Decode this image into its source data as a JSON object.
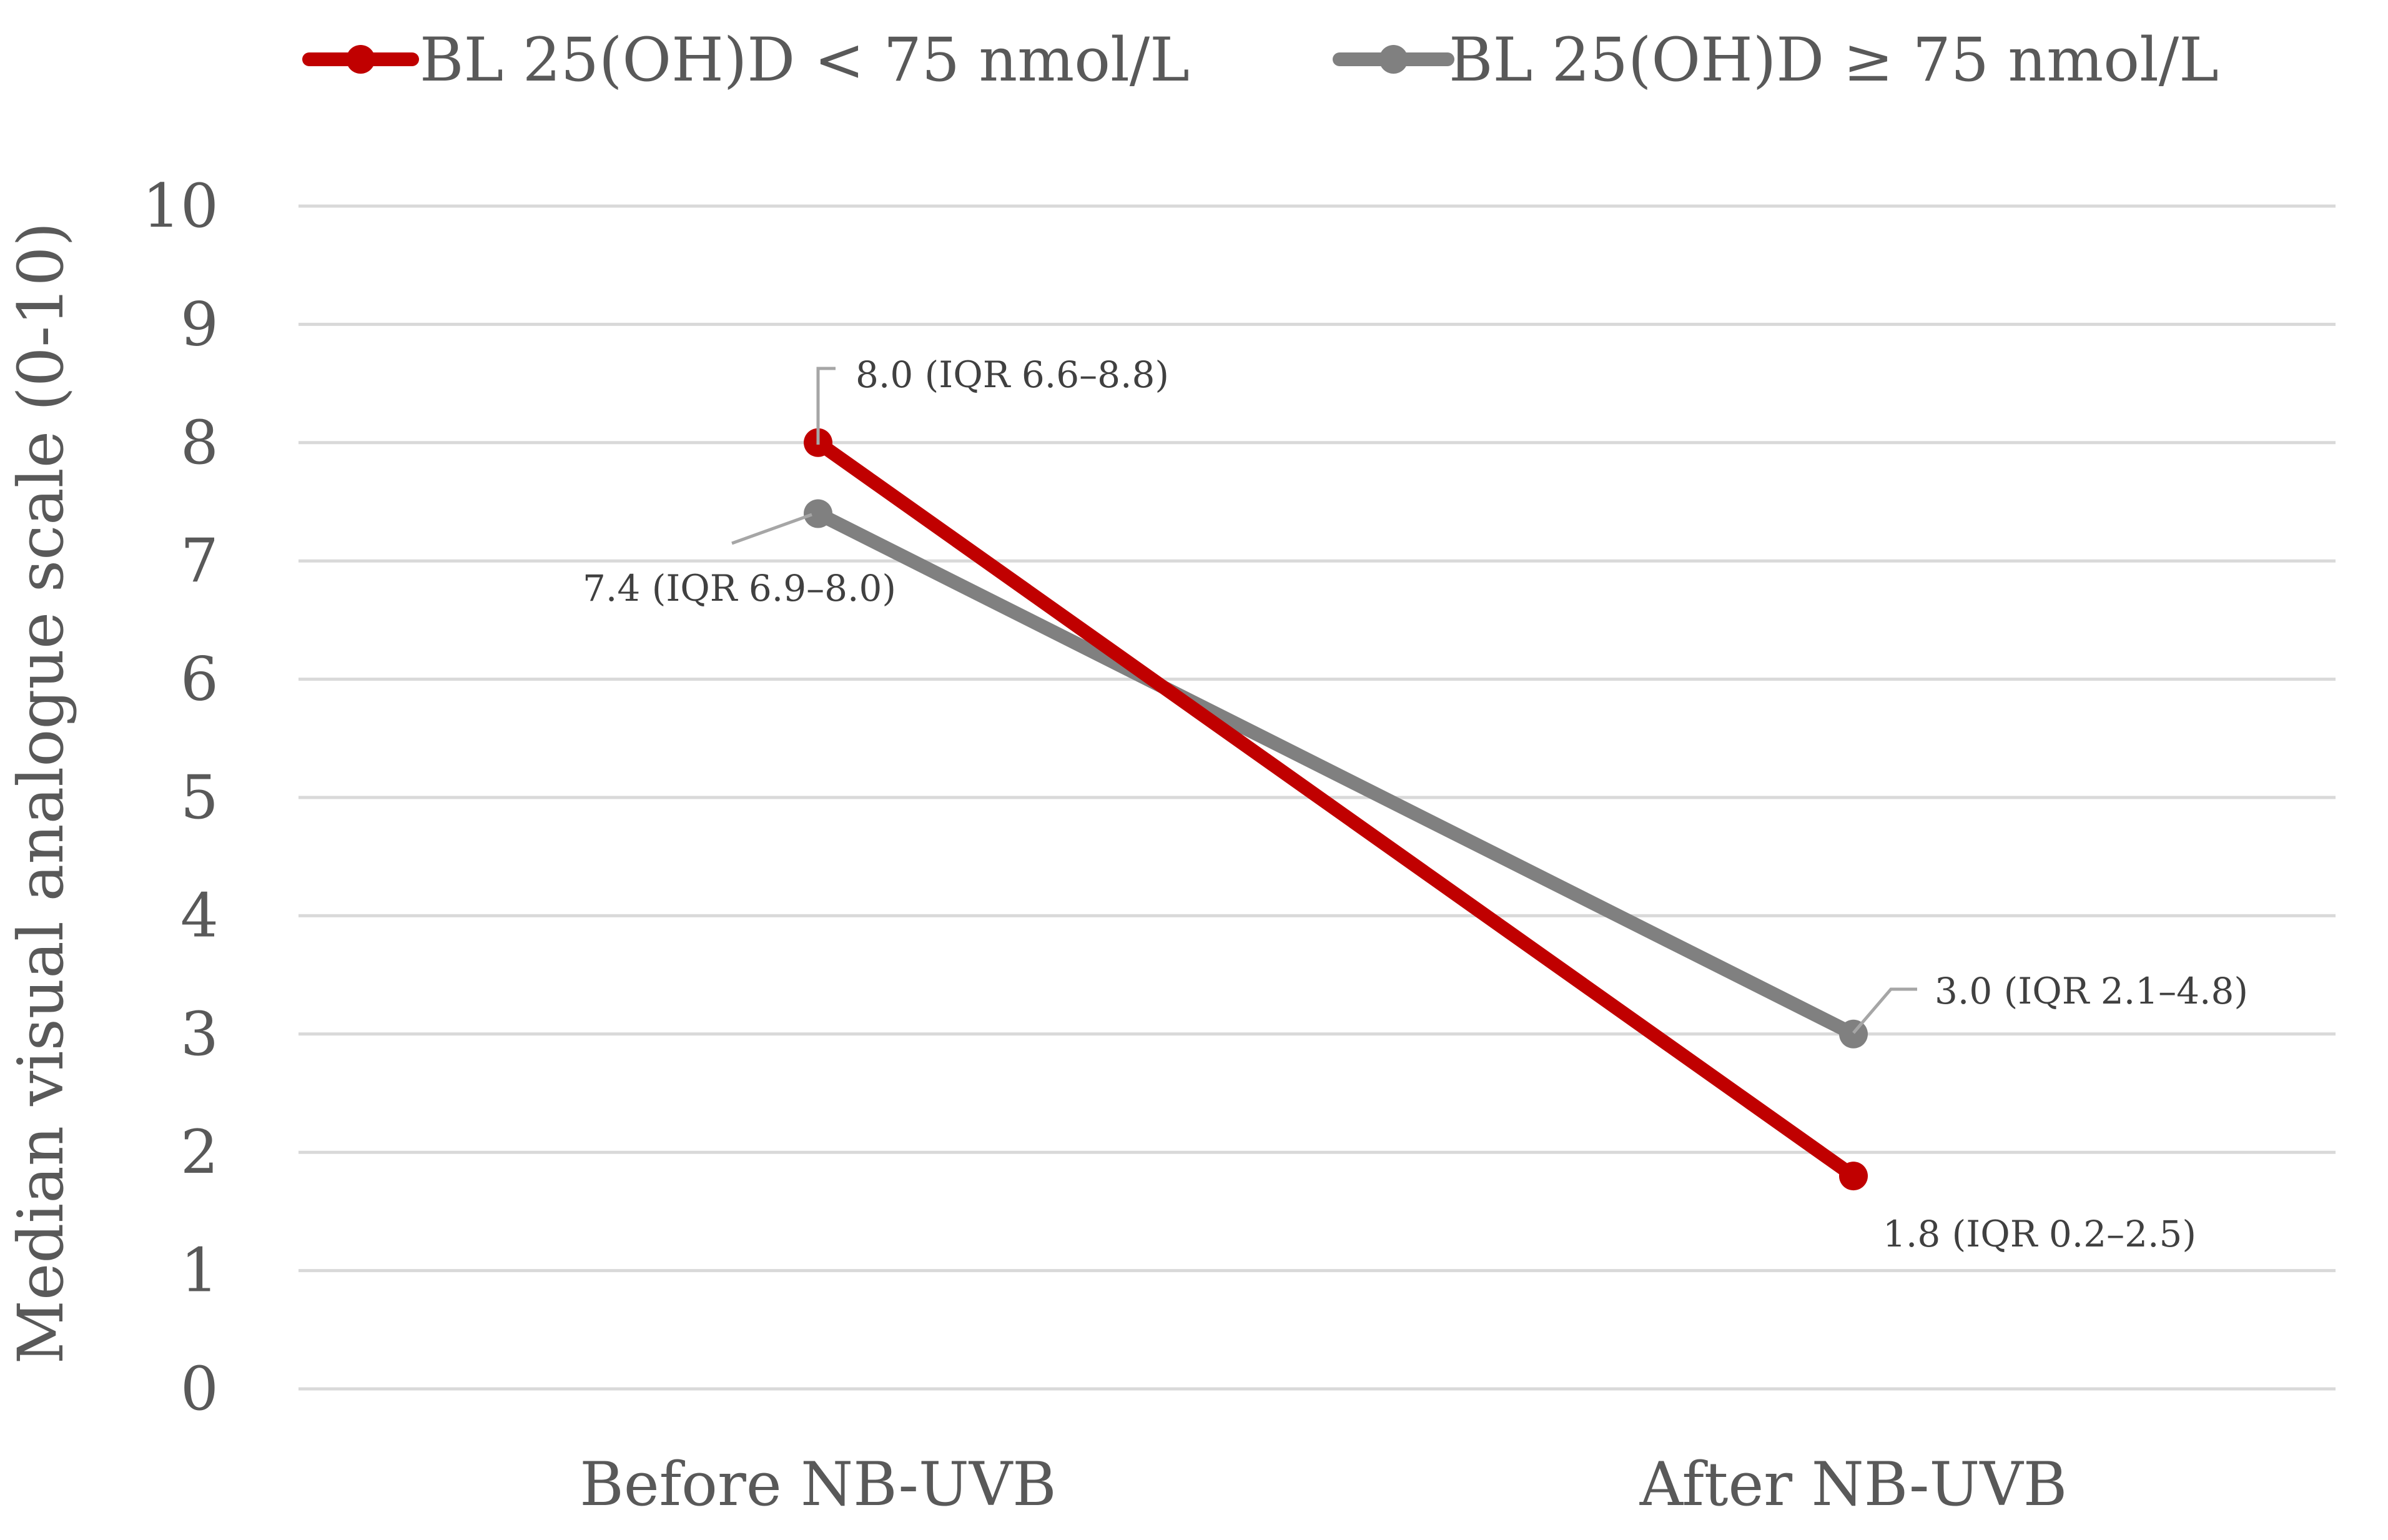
{
  "chart_data": {
    "type": "line",
    "title": "",
    "xlabel": "",
    "ylabel": "Median visual analogue scale (0-10)",
    "ylim": [
      0,
      10
    ],
    "yticks": [
      "0",
      "1",
      "2",
      "3",
      "4",
      "5",
      "6",
      "7",
      "8",
      "9",
      "10"
    ],
    "categories": [
      "Before NB-UVB",
      "After NB-UVB"
    ],
    "grid": true,
    "legend_position": "top",
    "series": [
      {
        "name": "BL 25(OH)D < 75 nmol/L",
        "color": "#C00000",
        "values": [
          8.0,
          1.8
        ],
        "labels": [
          "8.0 (IQR 6.6–8.8)",
          "1.8 (IQR 0.2–2.5)"
        ]
      },
      {
        "name": "BL 25(OH)D ≥ 75 nmol/L",
        "color": "#808080",
        "values": [
          7.4,
          3.0
        ],
        "labels": [
          "7.4 (IQR 6.9–8.0)",
          "3.0 (IQR 2.1–4.8)"
        ]
      }
    ]
  }
}
